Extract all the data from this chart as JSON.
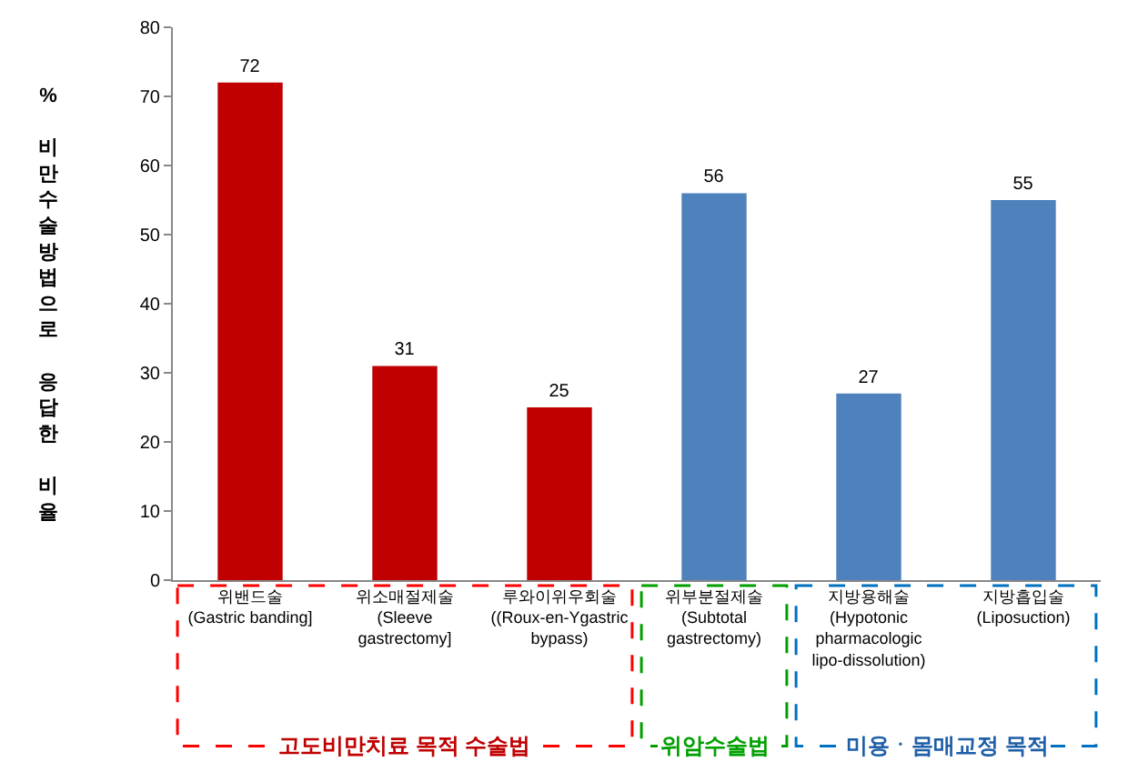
{
  "chart_data": {
    "type": "bar",
    "ylabel": "% 비만수술방법으로 응답한 비율",
    "categories": [
      "위밴드술\n(Gastric banding]",
      "위소매절제술\n(Sleeve\ngastrectomy]",
      "루와이위우회술\n((Roux-en-Ygastric\nbypass)",
      "위부분절제술\n(Subtotal\ngastrectomy)",
      "지방용해술\n(Hypotonic\npharmacologic\nlipo-dissolution)",
      "지방흡입술\n(Liposuction)"
    ],
    "values": [
      72,
      31,
      25,
      56,
      27,
      55
    ],
    "colors": [
      "#c00000",
      "#c00000",
      "#c00000",
      "#4f81bd",
      "#4f81bd",
      "#4f81bd"
    ],
    "ylim": [
      0,
      80
    ],
    "yticks": [
      0,
      10,
      20,
      30,
      40,
      50,
      60,
      70,
      80
    ],
    "data_labels": true,
    "grid": false,
    "annotations": [
      "고도비만치료 목적 수술법",
      "위암수술법",
      "미용ㆍ몸매교정 목적"
    ]
  }
}
